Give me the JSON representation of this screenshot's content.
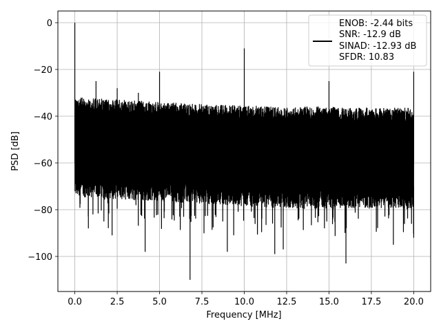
{
  "chart_data": {
    "type": "line",
    "xlabel": "Frequency [MHz]",
    "ylabel": "PSD [dB]",
    "xlim": [
      -1.0,
      21.0
    ],
    "ylim": [
      -115,
      5
    ],
    "xticks": [
      0.0,
      2.5,
      5.0,
      7.5,
      10.0,
      12.5,
      15.0,
      17.5,
      20.0
    ],
    "xtick_labels": [
      "0.0",
      "2.5",
      "5.0",
      "7.5",
      "10.0",
      "12.5",
      "15.0",
      "17.5",
      "20.0"
    ],
    "yticks": [
      0,
      -20,
      -40,
      -60,
      -80,
      -100
    ],
    "ytick_labels": [
      "0",
      "−20",
      "−40",
      "−60",
      "−80",
      "−100"
    ],
    "grid": true,
    "legend_position": "top-right",
    "series": [
      {
        "color": "#000000",
        "legend_lines": [
          "ENOB: -2.44 bits",
          "SNR: -12.9 dB",
          "SINAD: -12.93 dB",
          "SFDR: 10.83"
        ],
        "noise_floor_envelope": {
          "x": [
            0.1,
            2.5,
            5.0,
            7.5,
            10.0,
            12.5,
            15.0,
            17.5,
            20.0
          ],
          "upper": [
            -32,
            -33,
            -34,
            -35,
            -35.5,
            -36,
            -36,
            -36.5,
            -36.5
          ],
          "lower": [
            -72,
            -73,
            -74,
            -75,
            -76,
            -77,
            -77,
            -77,
            -77
          ]
        },
        "peaks": [
          {
            "x": 0.0,
            "y": 0
          },
          {
            "x": 1.25,
            "y": -25
          },
          {
            "x": 1.5,
            "y": -35
          },
          {
            "x": 2.5,
            "y": -28
          },
          {
            "x": 3.75,
            "y": -30
          },
          {
            "x": 5.0,
            "y": -21
          },
          {
            "x": 10.0,
            "y": -11
          },
          {
            "x": 15.0,
            "y": -25
          },
          {
            "x": 20.0,
            "y": -21
          }
        ],
        "dips": [
          {
            "x": 0.8,
            "y": -88
          },
          {
            "x": 2.2,
            "y": -91
          },
          {
            "x": 4.15,
            "y": -98
          },
          {
            "x": 6.8,
            "y": -110
          },
          {
            "x": 9.0,
            "y": -98
          },
          {
            "x": 11.8,
            "y": -99
          },
          {
            "x": 12.3,
            "y": -97
          },
          {
            "x": 16.0,
            "y": -103
          },
          {
            "x": 18.8,
            "y": -95
          },
          {
            "x": 20.0,
            "y": -92
          }
        ]
      }
    ]
  }
}
